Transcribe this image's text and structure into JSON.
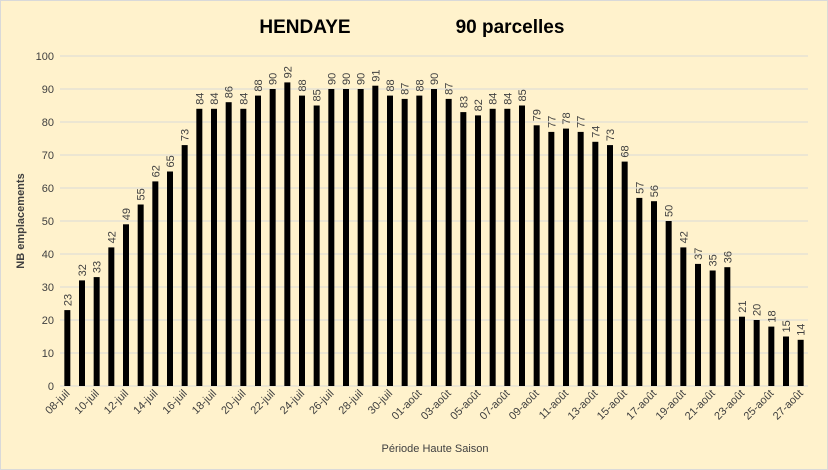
{
  "chart_data": {
    "type": "bar",
    "title": "HENDAYE",
    "subtitle": "90 parcelles",
    "x_label": "Période Haute Saison",
    "y_label": "NB emplacements",
    "categories": [
      "08-juil",
      null,
      "10-juil",
      null,
      "12-juil",
      null,
      "14-juil",
      null,
      "16-juil",
      null,
      "18-juil",
      null,
      "20-juil",
      null,
      "22-juil",
      null,
      "24-juil",
      null,
      "26-juil",
      null,
      "28-juil",
      null,
      "30-juil",
      null,
      "01-août",
      null,
      "03-août",
      null,
      "05-août",
      null,
      "07-août",
      null,
      "09-août",
      null,
      "11-août",
      null,
      "13-août",
      null,
      "15-août",
      null,
      "17-août",
      null,
      "19-août",
      null,
      "21-août",
      null,
      "23-août",
      null,
      "25-août",
      null,
      "27-août"
    ],
    "values": [
      23,
      32,
      33,
      42,
      49,
      55,
      62,
      65,
      73,
      84,
      84,
      86,
      84,
      88,
      90,
      92,
      88,
      85,
      90,
      90,
      90,
      91,
      88,
      87,
      88,
      90,
      87,
      83,
      82,
      84,
      84,
      85,
      79,
      77,
      78,
      77,
      74,
      73,
      68,
      57,
      56,
      50,
      42,
      37,
      35,
      36,
      21,
      20,
      18,
      15,
      14
    ],
    "color": "#000000",
    "ylim": [
      0,
      100
    ],
    "yticks": [
      0,
      10,
      20,
      30,
      40,
      50,
      60,
      70,
      80,
      90,
      100
    ],
    "grid": true
  }
}
